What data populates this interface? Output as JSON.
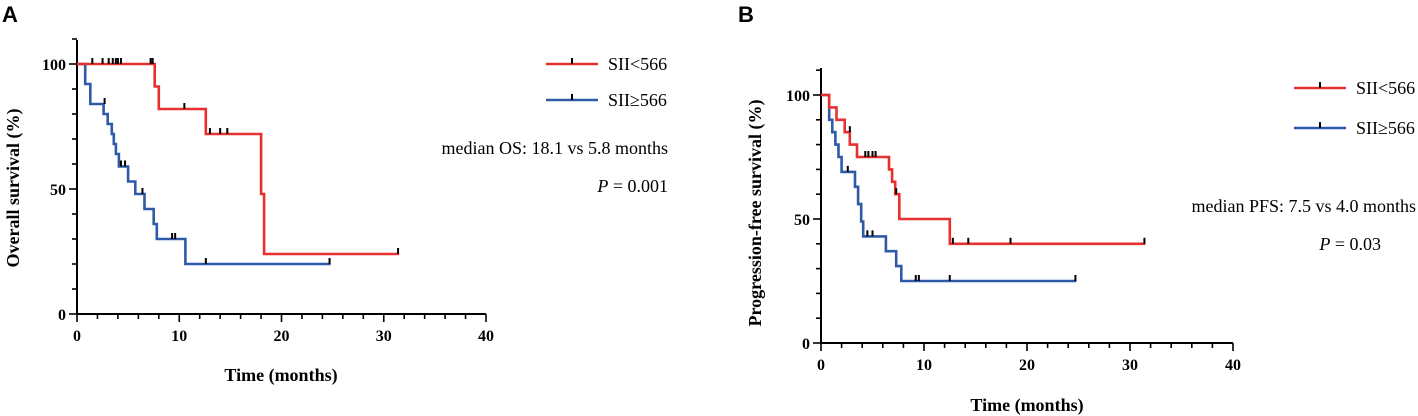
{
  "chart_data": [
    {
      "type": "line",
      "panel": "A",
      "xlabel": "Time (months)",
      "ylabel": "Overall survival (%)",
      "xlim": [
        0,
        40
      ],
      "ylim": [
        0,
        100
      ],
      "xticks": [
        0,
        10,
        20,
        30,
        40
      ],
      "yticks": [
        0,
        50,
        100
      ],
      "annotation": {
        "median": "median OS: 18.1 vs 5.8 months",
        "p_label": "P",
        "p_value": " = 0.001"
      },
      "series": [
        {
          "name": "SII<566",
          "color": "#e8312f",
          "steps": [
            [
              0,
              100
            ],
            [
              7.6,
              100
            ],
            [
              7.6,
              91
            ],
            [
              8,
              91
            ],
            [
              8,
              82
            ],
            [
              12.6,
              82
            ],
            [
              12.6,
              72
            ],
            [
              18,
              72
            ],
            [
              18,
              48
            ],
            [
              18.3,
              48
            ],
            [
              18.3,
              24
            ],
            [
              31.5,
              24
            ]
          ],
          "censors": [
            [
              1.5,
              100
            ],
            [
              2.5,
              100
            ],
            [
              3.1,
              100
            ],
            [
              3.5,
              100
            ],
            [
              3.8,
              100
            ],
            [
              4,
              100
            ],
            [
              4.3,
              100
            ],
            [
              7.2,
              100
            ],
            [
              7.4,
              100
            ],
            [
              10.5,
              82
            ],
            [
              13,
              72
            ],
            [
              14,
              72
            ],
            [
              14.7,
              72
            ],
            [
              31.4,
              24
            ]
          ]
        },
        {
          "name": "SII≥566",
          "color": "#2f5aa8",
          "steps": [
            [
              0,
              100
            ],
            [
              0.8,
              100
            ],
            [
              0.8,
              92
            ],
            [
              1.3,
              92
            ],
            [
              1.3,
              84
            ],
            [
              2.6,
              84
            ],
            [
              2.6,
              80
            ],
            [
              3,
              80
            ],
            [
              3,
              76
            ],
            [
              3.4,
              76
            ],
            [
              3.4,
              72
            ],
            [
              3.6,
              72
            ],
            [
              3.6,
              68
            ],
            [
              3.8,
              68
            ],
            [
              3.8,
              64
            ],
            [
              4.1,
              64
            ],
            [
              4.1,
              59
            ],
            [
              5,
              59
            ],
            [
              5,
              53
            ],
            [
              5.7,
              53
            ],
            [
              5.7,
              48
            ],
            [
              6.6,
              48
            ],
            [
              6.6,
              42
            ],
            [
              7.5,
              42
            ],
            [
              7.5,
              36
            ],
            [
              7.8,
              36
            ],
            [
              7.8,
              30
            ],
            [
              10.6,
              30
            ],
            [
              10.6,
              20
            ],
            [
              24.8,
              20
            ]
          ],
          "censors": [
            [
              2.7,
              84
            ],
            [
              4.3,
              59
            ],
            [
              4.7,
              59
            ],
            [
              6.4,
              48
            ],
            [
              9.3,
              30
            ],
            [
              9.6,
              30
            ],
            [
              12.6,
              20
            ],
            [
              24.7,
              20
            ]
          ]
        }
      ]
    },
    {
      "type": "line",
      "panel": "B",
      "xlabel": "Time (months)",
      "ylabel": "Progression-free survival (%)",
      "xlim": [
        0,
        40
      ],
      "ylim": [
        0,
        100
      ],
      "xticks": [
        0,
        10,
        20,
        30,
        40
      ],
      "yticks": [
        0,
        50,
        100
      ],
      "annotation": {
        "median": "median PFS: 7.5 vs 4.0 months",
        "p_label": "P",
        "p_value": " = 0.03"
      },
      "series": [
        {
          "name": "SII<566",
          "color": "#e8312f",
          "steps": [
            [
              0,
              100
            ],
            [
              0.8,
              100
            ],
            [
              0.8,
              95
            ],
            [
              1.5,
              95
            ],
            [
              1.5,
              90
            ],
            [
              2.3,
              90
            ],
            [
              2.3,
              85
            ],
            [
              2.8,
              85
            ],
            [
              2.8,
              80
            ],
            [
              3.5,
              80
            ],
            [
              3.5,
              75
            ],
            [
              6.6,
              75
            ],
            [
              6.6,
              70
            ],
            [
              6.9,
              70
            ],
            [
              6.9,
              65
            ],
            [
              7.2,
              65
            ],
            [
              7.2,
              60
            ],
            [
              7.6,
              60
            ],
            [
              7.6,
              50
            ],
            [
              12.5,
              50
            ],
            [
              12.5,
              40
            ],
            [
              31.5,
              40
            ]
          ],
          "censors": [
            [
              2.8,
              85
            ],
            [
              4.3,
              75
            ],
            [
              4.6,
              75
            ],
            [
              5,
              75
            ],
            [
              5.3,
              75
            ],
            [
              7.3,
              60
            ],
            [
              12.8,
              40
            ],
            [
              14.3,
              40
            ],
            [
              18.4,
              40
            ],
            [
              31.4,
              40
            ]
          ]
        },
        {
          "name": "SII≥566",
          "color": "#2f5aa8",
          "steps": [
            [
              0,
              100
            ],
            [
              0.8,
              100
            ],
            [
              0.8,
              90
            ],
            [
              1.1,
              90
            ],
            [
              1.1,
              85
            ],
            [
              1.4,
              85
            ],
            [
              1.4,
              80
            ],
            [
              1.7,
              80
            ],
            [
              1.7,
              75
            ],
            [
              2,
              75
            ],
            [
              2,
              69
            ],
            [
              3.3,
              69
            ],
            [
              3.3,
              63
            ],
            [
              3.6,
              63
            ],
            [
              3.6,
              56
            ],
            [
              3.9,
              56
            ],
            [
              3.9,
              49
            ],
            [
              4.1,
              49
            ],
            [
              4.1,
              43
            ],
            [
              6.3,
              43
            ],
            [
              6.3,
              37
            ],
            [
              7.3,
              37
            ],
            [
              7.3,
              31
            ],
            [
              7.8,
              31
            ],
            [
              7.8,
              25
            ],
            [
              24.8,
              25
            ]
          ],
          "censors": [
            [
              2.6,
              69
            ],
            [
              4.5,
              43
            ],
            [
              5,
              43
            ],
            [
              9.2,
              25
            ],
            [
              9.5,
              25
            ],
            [
              12.5,
              25
            ],
            [
              24.7,
              25
            ]
          ]
        }
      ]
    }
  ]
}
